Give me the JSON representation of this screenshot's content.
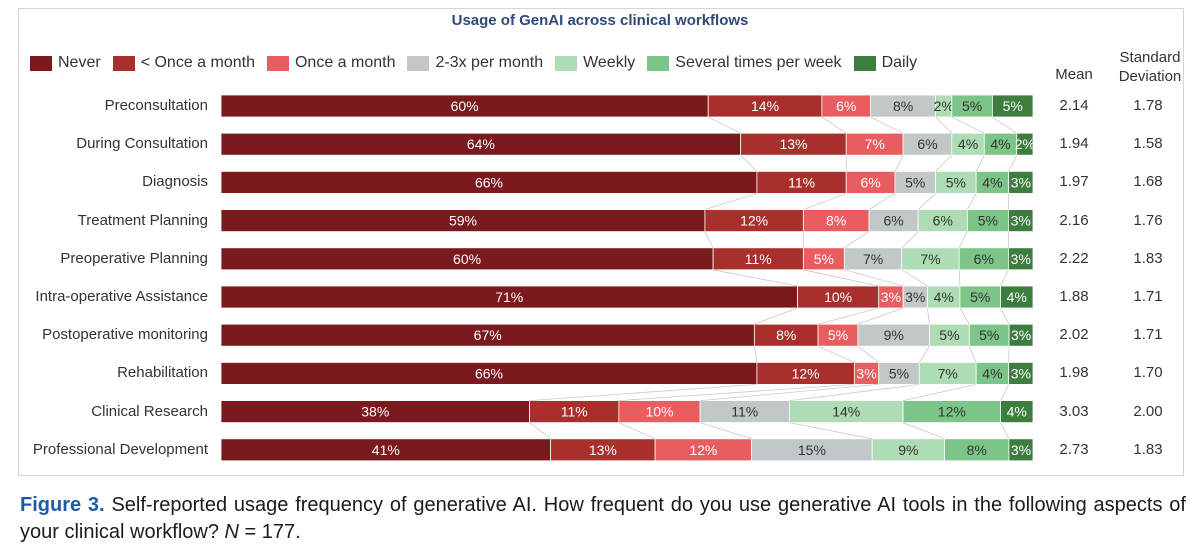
{
  "chart_data": {
    "type": "bar",
    "orientation": "horizontal",
    "stacked": true,
    "title": "Usage of GenAI across clinical workflows",
    "categories": [
      "Preconsultation",
      "During Consultation",
      "Diagnosis",
      "Treatment Planning",
      "Preoperative Planning",
      "Intra-operative Assistance",
      "Postoperative monitoring",
      "Rehabilitation",
      "Clinical Research",
      "Professional Development"
    ],
    "series": [
      {
        "name": "Never",
        "color": "#7b1a1e",
        "values": [
          60,
          64,
          66,
          59,
          60,
          71,
          67,
          66,
          38,
          41
        ]
      },
      {
        "name": "< Once a month",
        "color": "#a8302c",
        "values": [
          14,
          13,
          11,
          12,
          11,
          10,
          8,
          12,
          11,
          13
        ]
      },
      {
        "name": "Once a month",
        "color": "#e85d60",
        "values": [
          6,
          7,
          6,
          8,
          5,
          3,
          5,
          3,
          10,
          12
        ]
      },
      {
        "name": "2-3x per month",
        "color": "#c2c8c9",
        "values": [
          8,
          6,
          5,
          6,
          7,
          3,
          9,
          5,
          11,
          15
        ]
      },
      {
        "name": "Weekly",
        "color": "#aedcb4",
        "values": [
          2,
          4,
          5,
          6,
          7,
          4,
          5,
          7,
          14,
          9
        ]
      },
      {
        "name": "Several times per week",
        "color": "#7cc487",
        "values": [
          5,
          4,
          4,
          5,
          6,
          5,
          5,
          4,
          12,
          8
        ]
      },
      {
        "name": "Daily",
        "color": "#3d7d3e",
        "values": [
          5,
          2,
          3,
          3,
          3,
          4,
          3,
          3,
          4,
          3
        ]
      }
    ],
    "mean": [
      "2.14",
      "1.94",
      "1.97",
      "2.16",
      "2.22",
      "1.88",
      "2.02",
      "1.98",
      "3.03",
      "2.73"
    ],
    "std_dev": [
      "1.78",
      "1.58",
      "1.68",
      "1.76",
      "1.83",
      "1.71",
      "1.71",
      "1.70",
      "2.00",
      "1.83"
    ],
    "mean_header": "Mean",
    "std_header_line1": "Standard",
    "std_header_line2": "Deviation",
    "legend_position": "top",
    "value_suffix": "%"
  },
  "caption": {
    "figure_label": "Figure 3.",
    "text": " Self-reported usage frequency of generative AI. How frequent do you use generative AI tools in the following aspects of your clinical workflow? ",
    "n_label": "N",
    "n_value": " = 177."
  }
}
